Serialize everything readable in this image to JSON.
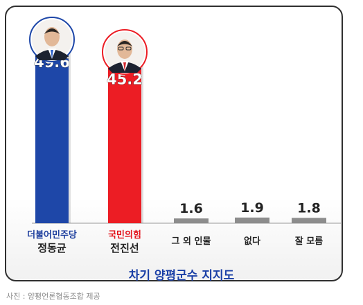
{
  "chart_data": {
    "type": "bar",
    "title": "차기 양평군수 지지도",
    "categories": [
      {
        "party": "더불어민주당",
        "name": "정동균"
      },
      {
        "party": "국민의힘",
        "name": "전진선"
      },
      {
        "party": "",
        "name": "그 외 인물"
      },
      {
        "party": "",
        "name": "없다"
      },
      {
        "party": "",
        "name": "잘 모름"
      }
    ],
    "values": [
      49.6,
      45.2,
      1.6,
      1.9,
      1.8
    ],
    "value_labels": [
      "49.6",
      "45.2",
      "1.6",
      "1.9",
      "1.8"
    ],
    "colors": [
      "#1e47a8",
      "#ec1d24",
      "#8d8d8d",
      "#8d8d8d",
      "#8d8d8d"
    ],
    "party_colors": [
      "#1e3f9e",
      "#e3141c",
      "",
      "",
      ""
    ],
    "ylim": [
      0,
      50
    ],
    "grid": false,
    "legend": "none",
    "photos": [
      "person-photo-jung",
      "person-photo-jeon"
    ]
  },
  "credit": "사진 : 양평언론협동조합 제공"
}
